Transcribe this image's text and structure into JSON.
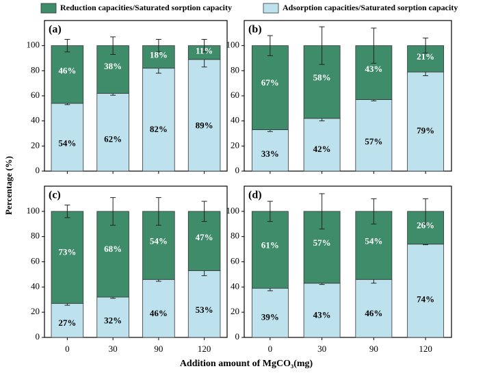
{
  "chart_data": {
    "type": "bar",
    "stacked": true,
    "xlabel": "Addition amount of MgCO₃(mg)",
    "ylabel": "Percentage (%)",
    "categories": [
      "0",
      "30",
      "90",
      "120"
    ],
    "ylim": [
      0,
      120
    ],
    "yticks": [
      0,
      20,
      40,
      60,
      80,
      100
    ],
    "series": [
      {
        "name": "Adsorption capacities/Saturated sorption capacity",
        "color": "#bde2ee"
      },
      {
        "name": "Reduction capacities/Saturated sorption capacity",
        "color": "#3f8c6b"
      }
    ],
    "panels": [
      {
        "label": "(a)",
        "series": [
          {
            "values": [
              54,
              62,
              82,
              89
            ],
            "value_labels": [
              "54%",
              "62%",
              "82%",
              "89%"
            ],
            "errors": [
              1,
              1.5,
              4,
              6
            ]
          },
          {
            "values": [
              46,
              38,
              18,
              11
            ],
            "value_labels": [
              "46%",
              "38%",
              "18%",
              "11%"
            ],
            "errors": [
              5,
              7,
              5,
              5
            ]
          }
        ]
      },
      {
        "label": "(b)",
        "series": [
          {
            "values": [
              33,
              42,
              57,
              79
            ],
            "value_labels": [
              "33%",
              "42%",
              "57%",
              "79%"
            ],
            "errors": [
              1.5,
              2,
              1,
              3
            ]
          },
          {
            "values": [
              67,
              58,
              43,
              21
            ],
            "value_labels": [
              "67%",
              "58%",
              "43%",
              "21%"
            ],
            "errors": [
              8,
              15,
              14,
              6
            ]
          }
        ]
      },
      {
        "label": "(c)",
        "series": [
          {
            "values": [
              27,
              32,
              46,
              53
            ],
            "value_labels": [
              "27%",
              "32%",
              "46%",
              "53%"
            ],
            "errors": [
              1.5,
              1,
              1.5,
              4
            ]
          },
          {
            "values": [
              73,
              68,
              54,
              47
            ],
            "value_labels": [
              "73%",
              "68%",
              "54%",
              "47%"
            ],
            "errors": [
              5,
              11,
              11,
              8
            ]
          }
        ]
      },
      {
        "label": "(d)",
        "series": [
          {
            "values": [
              39,
              43,
              46,
              74
            ],
            "value_labels": [
              "39%",
              "43%",
              "46%",
              "74%"
            ],
            "errors": [
              2,
              1,
              3,
              0.5
            ]
          },
          {
            "values": [
              61,
              57,
              54,
              26
            ],
            "value_labels": [
              "61%",
              "57%",
              "54%",
              "26%"
            ],
            "errors": [
              8,
              14,
              10,
              10
            ]
          }
        ]
      }
    ]
  }
}
